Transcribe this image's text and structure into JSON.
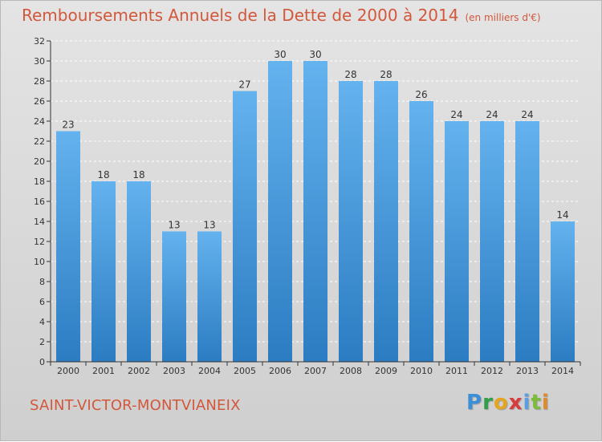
{
  "title": "Remboursements Annuels de la Dette de 2000 à 2014",
  "unit": "(en milliers d'€)",
  "location": "SAINT-VICTOR-MONTVIANEIX",
  "logo_text": "Proxiti",
  "colors": {
    "title": "#d2583c",
    "bar_light": "#64b2ee",
    "bar_dark": "#2b7cc2",
    "grid": "#ffffff",
    "axis": "#333333"
  },
  "chart_data": {
    "type": "bar",
    "title": "Remboursements Annuels de la Dette de 2000 à 2014",
    "subtitle": "(en milliers d'€)",
    "xlabel": "",
    "ylabel": "",
    "categories": [
      "2000",
      "2001",
      "2002",
      "2003",
      "2004",
      "2005",
      "2006",
      "2007",
      "2008",
      "2009",
      "2010",
      "2011",
      "2012",
      "2013",
      "2014"
    ],
    "values": [
      23,
      18,
      18,
      13,
      13,
      27,
      30,
      30,
      28,
      28,
      26,
      24,
      24,
      24,
      14
    ],
    "ylim": [
      0,
      32
    ],
    "yticks": [
      0,
      2,
      4,
      6,
      8,
      10,
      12,
      14,
      16,
      18,
      20,
      22,
      24,
      26,
      28,
      30,
      32
    ],
    "grid": "horizontal dashed",
    "legend": "none"
  }
}
